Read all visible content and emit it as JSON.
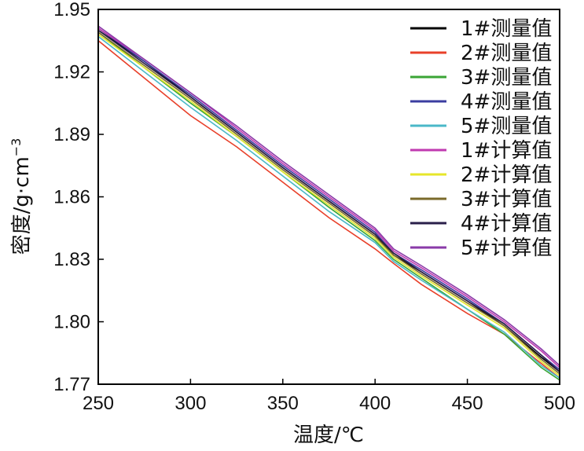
{
  "chart_data": {
    "type": "line",
    "xlabel": "温度/℃",
    "ylabel": "密度/g·cm",
    "ylabel_superscript": "−3",
    "xlim": [
      250,
      500
    ],
    "ylim": [
      1.77,
      1.95
    ],
    "x_ticks": [
      "250",
      "300",
      "350",
      "400",
      "450",
      "500"
    ],
    "y_ticks": [
      "1.77",
      "1.80",
      "1.83",
      "1.86",
      "1.89",
      "1.92",
      "1.95"
    ],
    "x_tick_values": [
      250,
      300,
      350,
      400,
      450,
      500
    ],
    "y_tick_values": [
      1.77,
      1.8,
      1.83,
      1.86,
      1.89,
      1.92,
      1.95
    ],
    "grid": false,
    "legend_position": "top-right",
    "x": [
      250,
      275,
      300,
      325,
      350,
      375,
      400,
      410,
      425,
      450,
      470,
      490,
      500
    ],
    "series": [
      {
        "name": "1#测量值",
        "color": "#000000",
        "values": [
          1.94,
          1.925,
          1.908,
          1.891,
          1.874,
          1.858,
          1.842,
          1.832,
          1.824,
          1.81,
          1.798,
          1.783,
          1.776
        ]
      },
      {
        "name": "2#测量值",
        "color": "#e8402a",
        "values": [
          1.935,
          1.917,
          1.899,
          1.884,
          1.867,
          1.85,
          1.835,
          1.828,
          1.818,
          1.804,
          1.794,
          1.78,
          1.773
        ]
      },
      {
        "name": "3#测量值",
        "color": "#3aa535",
        "values": [
          1.939,
          1.922,
          1.905,
          1.889,
          1.872,
          1.855,
          1.839,
          1.83,
          1.821,
          1.806,
          1.794,
          1.778,
          1.772
        ]
      },
      {
        "name": "4#测量值",
        "color": "#3b3da0",
        "values": [
          1.941,
          1.925,
          1.909,
          1.892,
          1.875,
          1.859,
          1.843,
          1.833,
          1.825,
          1.811,
          1.799,
          1.784,
          1.777
        ]
      },
      {
        "name": "5#测量值",
        "color": "#4ab8c8",
        "values": [
          1.937,
          1.92,
          1.903,
          1.887,
          1.87,
          1.853,
          1.838,
          1.829,
          1.82,
          1.806,
          1.795,
          1.779,
          1.773
        ]
      },
      {
        "name": "1#计算值",
        "color": "#c03ab0",
        "values": [
          1.941,
          1.926,
          1.91,
          1.893,
          1.876,
          1.86,
          1.844,
          1.834,
          1.826,
          1.812,
          1.8,
          1.786,
          1.778
        ]
      },
      {
        "name": "2#计算值",
        "color": "#e6e62a",
        "values": [
          1.938,
          1.922,
          1.906,
          1.889,
          1.872,
          1.856,
          1.84,
          1.831,
          1.822,
          1.808,
          1.797,
          1.781,
          1.774
        ]
      },
      {
        "name": "3#计算值",
        "color": "#7a6a2a",
        "values": [
          1.939,
          1.923,
          1.907,
          1.89,
          1.873,
          1.857,
          1.841,
          1.832,
          1.823,
          1.809,
          1.798,
          1.782,
          1.775
        ]
      },
      {
        "name": "4#计算值",
        "color": "#2a1f4a",
        "values": [
          1.94,
          1.924,
          1.908,
          1.891,
          1.874,
          1.858,
          1.842,
          1.833,
          1.824,
          1.81,
          1.799,
          1.784,
          1.776
        ]
      },
      {
        "name": "5#计算值",
        "color": "#8a3aa8",
        "values": [
          1.942,
          1.926,
          1.91,
          1.894,
          1.877,
          1.861,
          1.845,
          1.835,
          1.827,
          1.813,
          1.801,
          1.787,
          1.779
        ]
      }
    ]
  }
}
